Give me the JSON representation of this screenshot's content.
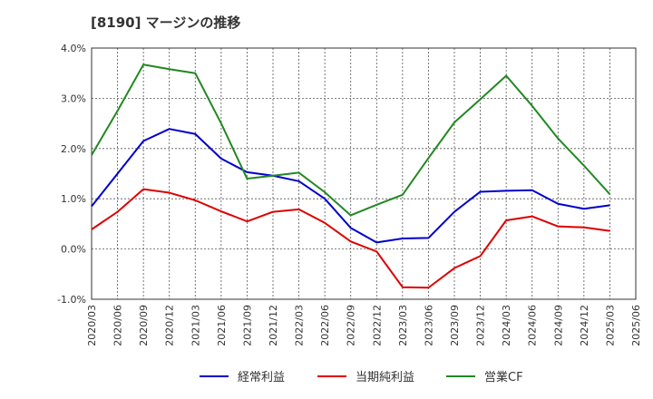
{
  "chart_data": {
    "type": "line",
    "title": "[8190]  マージンの推移",
    "xlabel": "",
    "ylabel": "",
    "ylim": [
      -1.0,
      4.0
    ],
    "yticks": [
      "-1.0%",
      "0.0%",
      "1.0%",
      "2.0%",
      "3.0%",
      "4.0%"
    ],
    "ytick_values": [
      -1.0,
      0.0,
      1.0,
      2.0,
      3.0,
      4.0
    ],
    "x": [
      "2020/03",
      "2020/06",
      "2020/09",
      "2020/12",
      "2021/03",
      "2021/06",
      "2021/09",
      "2021/12",
      "2022/03",
      "2022/06",
      "2022/09",
      "2022/12",
      "2023/03",
      "2023/06",
      "2023/09",
      "2023/12",
      "2024/03",
      "2024/06",
      "2024/09",
      "2024/12",
      "2025/03",
      "2025/06"
    ],
    "grid": true,
    "legend_position": "bottom",
    "series": [
      {
        "name": "経常利益",
        "color": "#0000cc",
        "values": [
          0.85,
          1.5,
          2.15,
          2.39,
          2.29,
          1.8,
          1.53,
          1.46,
          1.35,
          1.0,
          0.42,
          0.13,
          0.21,
          0.22,
          0.74,
          1.14,
          1.16,
          1.17,
          0.9,
          0.8,
          0.87,
          null
        ]
      },
      {
        "name": "当期純利益",
        "color": "#dd0000",
        "values": [
          0.39,
          0.74,
          1.19,
          1.12,
          0.97,
          0.75,
          0.55,
          0.74,
          0.79,
          0.52,
          0.15,
          -0.05,
          -0.76,
          -0.77,
          -0.38,
          -0.14,
          0.57,
          0.65,
          0.45,
          0.43,
          0.36,
          null
        ]
      },
      {
        "name": "営業CF",
        "color": "#228822",
        "values": [
          1.87,
          2.75,
          3.67,
          3.58,
          3.5,
          2.5,
          1.4,
          1.46,
          1.52,
          1.13,
          0.67,
          0.88,
          1.08,
          1.81,
          2.52,
          2.98,
          3.45,
          2.85,
          2.2,
          1.66,
          1.09,
          null
        ]
      }
    ]
  }
}
